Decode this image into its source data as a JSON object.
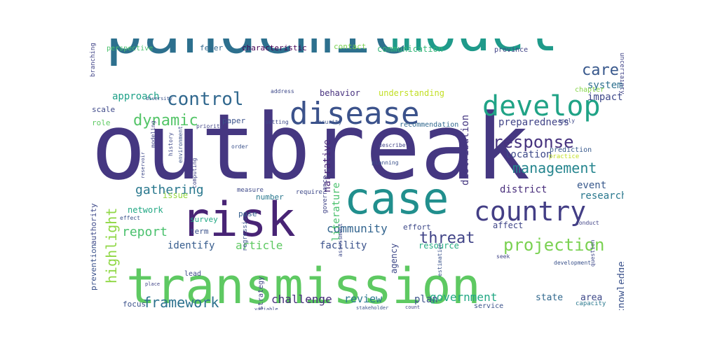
{
  "words": [
    {
      "text": "outbreak",
      "color": "#453781"
    },
    {
      "text": "pandemic",
      "color": "#2d708e"
    },
    {
      "text": "model",
      "color": "#1f9a8a"
    },
    {
      "text": "transmission",
      "color": "#5ec962"
    },
    {
      "text": "risk",
      "color": "#482475"
    },
    {
      "text": "case",
      "color": "#218f8d"
    },
    {
      "text": "disease",
      "color": "#3b528b"
    },
    {
      "text": "develop",
      "color": "#20a386"
    },
    {
      "text": "country",
      "color": "#433e85"
    },
    {
      "text": "response",
      "color": "#46327e"
    },
    {
      "text": "control",
      "color": "#31688e"
    },
    {
      "text": "projection",
      "color": "#7ad151"
    },
    {
      "text": "dynamic",
      "color": "#54c568"
    },
    {
      "text": "care",
      "color": "#38588c"
    },
    {
      "text": "management",
      "color": "#25858e"
    },
    {
      "text": "highlight",
      "color": "#8fd744"
    },
    {
      "text": "framework",
      "color": "#2c728e"
    },
    {
      "text": "threat",
      "color": "#414487"
    },
    {
      "text": "gathering",
      "color": "#2a788e"
    },
    {
      "text": "report",
      "color": "#4ac16d"
    },
    {
      "text": "community",
      "color": "#32648e"
    },
    {
      "text": "article",
      "color": "#5ec962"
    },
    {
      "text": "challenge",
      "color": "#472d7b"
    },
    {
      "text": "review",
      "color": "#2a788e"
    },
    {
      "text": "government",
      "color": "#22a884"
    },
    {
      "text": "plan",
      "color": "#3b528b"
    },
    {
      "text": "system",
      "color": "#2d708e"
    },
    {
      "text": "impact",
      "color": "#3e4989"
    },
    {
      "text": "approach",
      "color": "#1fa188"
    },
    {
      "text": "identify",
      "color": "#365c8d"
    },
    {
      "text": "facility",
      "color": "#3b528b"
    },
    {
      "text": "research",
      "color": "#2a788e"
    },
    {
      "text": "event",
      "color": "#38598c"
    },
    {
      "text": "district",
      "color": "#472c7a"
    },
    {
      "text": "preparedness",
      "color": "#414487"
    },
    {
      "text": "location",
      "color": "#3e4a89"
    },
    {
      "text": "distribution",
      "color": "#453781"
    },
    {
      "text": "literature",
      "color": "#4ac16d"
    },
    {
      "text": "narrative",
      "color": "#482576"
    },
    {
      "text": "network",
      "color": "#22a884"
    },
    {
      "text": "issue",
      "color": "#95d840"
    },
    {
      "text": "knowledge",
      "color": "#3b528b"
    },
    {
      "text": "state",
      "color": "#31688e"
    },
    {
      "text": "area",
      "color": "#3e4989"
    },
    {
      "text": "agency",
      "color": "#3e4989"
    },
    {
      "text": "resource",
      "color": "#25ab82"
    },
    {
      "text": "affect",
      "color": "#404688"
    },
    {
      "text": "behavior",
      "color": "#46307e"
    },
    {
      "text": "understanding",
      "color": "#c2df23"
    },
    {
      "text": "communication",
      "color": "#35b779"
    },
    {
      "text": "characteristic",
      "color": "#440154"
    },
    {
      "text": "fever",
      "color": "#31688e"
    },
    {
      "text": "contact",
      "color": "#7ad151"
    },
    {
      "text": "province",
      "color": "#414487"
    },
    {
      "text": "perspective",
      "color": "#4ac16d"
    },
    {
      "text": "chapter",
      "color": "#86d549"
    },
    {
      "text": "scale",
      "color": "#3e4989"
    },
    {
      "text": "role",
      "color": "#5ec962"
    },
    {
      "text": "paper",
      "color": "#3b528b"
    },
    {
      "text": "pose",
      "color": "#355f8d"
    },
    {
      "text": "survey",
      "color": "#22a884"
    },
    {
      "text": "term",
      "color": "#3b528b"
    },
    {
      "text": "number",
      "color": "#2a788e"
    },
    {
      "text": "effort",
      "color": "#3e4989"
    },
    {
      "text": "focus",
      "color": "#3b528b"
    },
    {
      "text": "strategy",
      "color": "#414487"
    },
    {
      "text": "lead",
      "color": "#3e4989"
    },
    {
      "text": "recommendation",
      "color": "#31688e"
    },
    {
      "text": "prediction",
      "color": "#38598c"
    },
    {
      "text": "service",
      "color": "#3b528b"
    },
    {
      "text": "capacity",
      "color": "#2a788e"
    },
    {
      "text": "uncertainty",
      "color": "#414487"
    },
    {
      "text": "prevention",
      "color": "#3b528b"
    },
    {
      "text": "authority",
      "color": "#3e4989"
    },
    {
      "text": "branching",
      "color": "#414487"
    },
    {
      "text": "measure",
      "color": "#3e4989"
    },
    {
      "text": "regression",
      "color": "#3b528b"
    },
    {
      "text": "require",
      "color": "#3e4989"
    },
    {
      "text": "governance",
      "color": "#414487"
    },
    {
      "text": "planning",
      "color": "#3b528b"
    },
    {
      "text": "describe",
      "color": "#414487"
    },
    {
      "text": "apply",
      "color": "#3e4989"
    },
    {
      "text": "order",
      "color": "#3b528b"
    },
    {
      "text": "setting",
      "color": "#3e4989"
    },
    {
      "text": "security",
      "color": "#3b528b"
    },
    {
      "text": "priority",
      "color": "#414487"
    },
    {
      "text": "address",
      "color": "#3e4989"
    },
    {
      "text": "diversity",
      "color": "#3b528b"
    },
    {
      "text": "modeling",
      "color": "#414487"
    },
    {
      "text": "history",
      "color": "#3e4989"
    },
    {
      "text": "environment",
      "color": "#3b528b"
    },
    {
      "text": "computing",
      "color": "#414487"
    },
    {
      "text": "reservoir",
      "color": "#3e4989"
    },
    {
      "text": "effect",
      "color": "#3b528b"
    },
    {
      "text": "place",
      "color": "#414487"
    },
    {
      "text": "variable",
      "color": "#3e4989"
    },
    {
      "text": "stakeholder",
      "color": "#3b528b"
    },
    {
      "text": "seek",
      "color": "#414487"
    },
    {
      "text": "question",
      "color": "#3e4989"
    },
    {
      "text": "development",
      "color": "#3b528b"
    },
    {
      "text": "conduct",
      "color": "#414487"
    },
    {
      "text": "practice",
      "color": "#c2df23"
    },
    {
      "text": "assessment",
      "color": "#3e4989"
    },
    {
      "text": "estimation",
      "color": "#3b528b"
    },
    {
      "text": "count",
      "color": "#414487"
    }
  ]
}
